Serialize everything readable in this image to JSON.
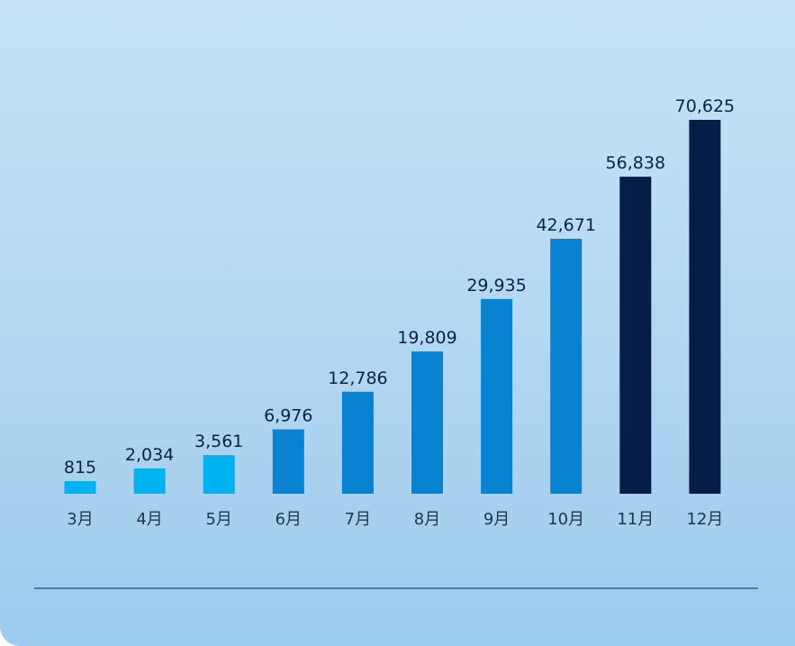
{
  "chart_data": {
    "type": "bar",
    "title": "",
    "xlabel": "",
    "ylabel": "",
    "categories": [
      "3月",
      "4月",
      "5月",
      "6月",
      "7月",
      "8月",
      "9月",
      "10月",
      "11月",
      "12月"
    ],
    "values": [
      815,
      2034,
      3561,
      6976,
      12786,
      19809,
      29935,
      42671,
      56838,
      70625
    ],
    "value_labels": [
      "815",
      "2,034",
      "3,561",
      "6,976",
      "12,786",
      "19,809",
      "29,935",
      "42,671",
      "56,838",
      "70,625"
    ],
    "bar_colors": [
      "#00b2ef",
      "#00b2ef",
      "#00b2ef",
      "#0a82d2",
      "#0a82d2",
      "#0a82d2",
      "#0a82d2",
      "#0a82d2",
      "#061d47",
      "#061d47"
    ],
    "grid": false,
    "legend": "none"
  }
}
